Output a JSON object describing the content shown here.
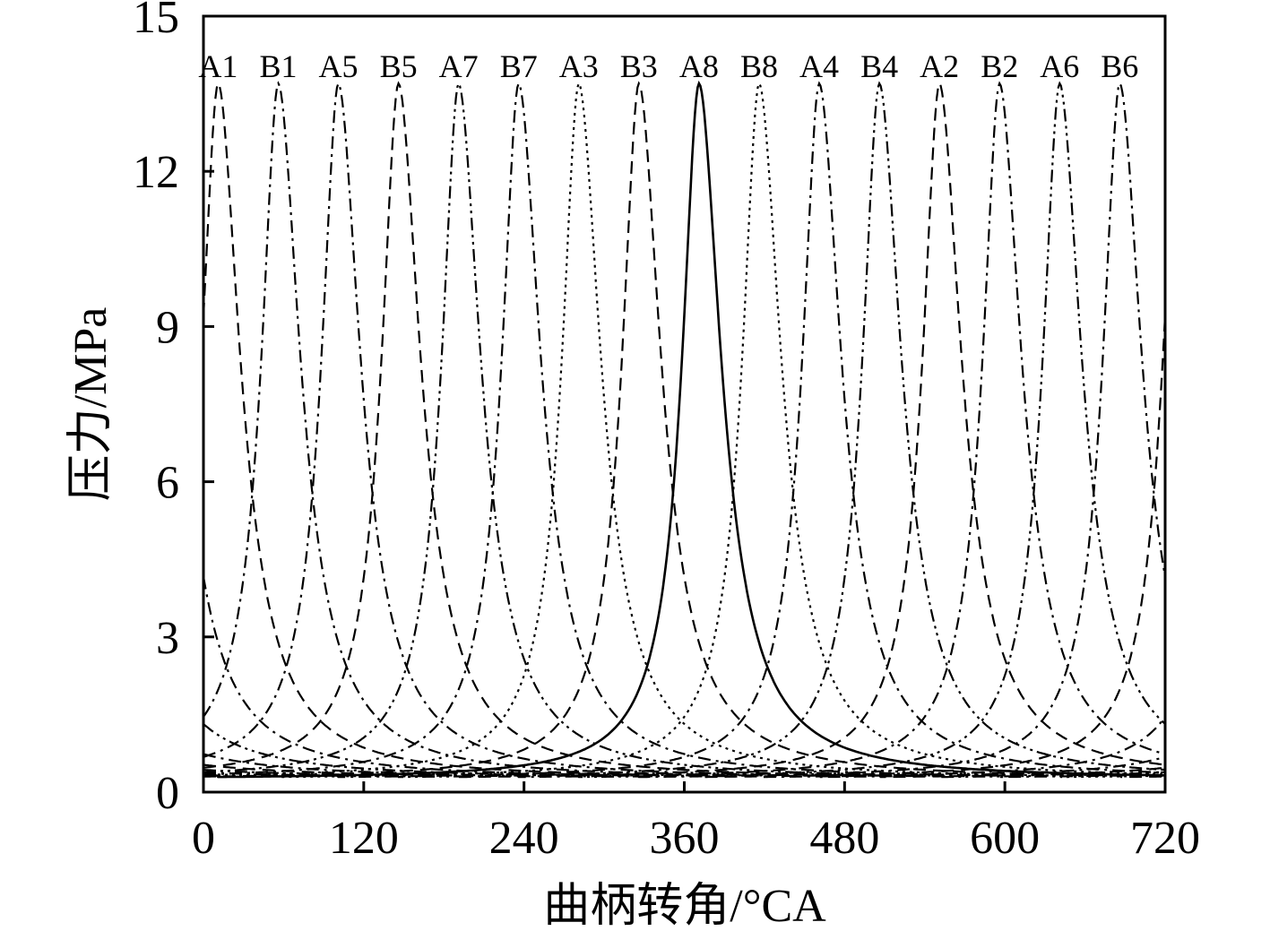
{
  "chart_data": {
    "type": "line",
    "title": "",
    "xlabel": "曲柄转角/°CA",
    "ylabel": "压力/MPa",
    "xlim": [
      0,
      720
    ],
    "ylim": [
      0,
      15
    ],
    "xticks": [
      0,
      120,
      240,
      360,
      480,
      600,
      720
    ],
    "yticks": [
      0,
      3,
      6,
      9,
      12,
      15
    ],
    "grid": false,
    "legend": "labels above peaks",
    "peak_pressure": 13.7,
    "series": [
      {
        "name": "A1",
        "peak_x": 11,
        "style": "dashed"
      },
      {
        "name": "B1",
        "peak_x": 56,
        "style": "dashdot"
      },
      {
        "name": "A5",
        "peak_x": 101,
        "style": "dashdot"
      },
      {
        "name": "B5",
        "peak_x": 146,
        "style": "dashed"
      },
      {
        "name": "A7",
        "peak_x": 191,
        "style": "dashdotdot"
      },
      {
        "name": "B7",
        "peak_x": 236,
        "style": "dashdot"
      },
      {
        "name": "A3",
        "peak_x": 281,
        "style": "dotted"
      },
      {
        "name": "B3",
        "peak_x": 326,
        "style": "dashed"
      },
      {
        "name": "A8",
        "peak_x": 371,
        "style": "solid"
      },
      {
        "name": "B8",
        "peak_x": 416,
        "style": "dotted"
      },
      {
        "name": "A4",
        "peak_x": 461,
        "style": "dashdot"
      },
      {
        "name": "B4",
        "peak_x": 506,
        "style": "dashdotdot"
      },
      {
        "name": "A2",
        "peak_x": 551,
        "style": "dashed"
      },
      {
        "name": "B2",
        "peak_x": 596,
        "style": "dashdot"
      },
      {
        "name": "A6",
        "peak_x": 641,
        "style": "dashdotdot"
      },
      {
        "name": "B6",
        "peak_x": 686,
        "style": "dashdot"
      }
    ]
  }
}
